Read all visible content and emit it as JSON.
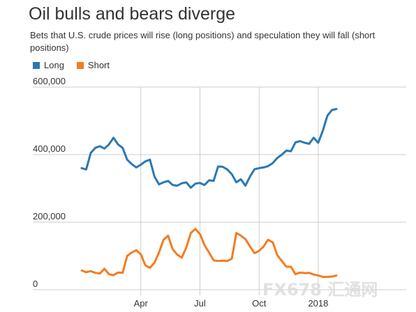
{
  "title": "Oil bulls and bears diverge",
  "subtitle": "Bets that U.S. crude prices will rise (long positions) and speculation they will fall (short positions)",
  "legend": {
    "long": "Long",
    "short": "Short"
  },
  "colors": {
    "long": "#2a78b5",
    "short": "#f47c20",
    "grid": "#cccccc"
  },
  "watermark": "FX678 汇通网",
  "chart_data": {
    "type": "line",
    "title": "Oil bulls and bears diverge",
    "subtitle": "Bets that U.S. crude prices will rise (long positions) and speculation they will fall (short positions)",
    "xlabel": "",
    "ylabel": "",
    "ylim": [
      0,
      600000
    ],
    "yticks": [
      0,
      200000,
      400000,
      600000
    ],
    "ytick_labels": [
      "0",
      "200,000",
      "400,000",
      "600,000"
    ],
    "xtick_labels": [
      "Apr",
      "Jul",
      "Oct",
      "2018"
    ],
    "xtick_positions": [
      13,
      26,
      39,
      52
    ],
    "grid": "vertical and horizontal",
    "legend_position": "top-left",
    "x": [
      0,
      1,
      2,
      3,
      4,
      5,
      6,
      7,
      8,
      9,
      10,
      11,
      12,
      13,
      14,
      15,
      16,
      17,
      18,
      19,
      20,
      21,
      22,
      23,
      24,
      25,
      26,
      27,
      28,
      29,
      30,
      31,
      32,
      33,
      34,
      35,
      36,
      37,
      38,
      39,
      40,
      41,
      42,
      43,
      44,
      45,
      46,
      47,
      48,
      49,
      50,
      51,
      52,
      53,
      54,
      55,
      56
    ],
    "series": [
      {
        "name": "Long",
        "values": [
          360000,
          356000,
          405000,
          420000,
          425000,
          418000,
          430000,
          450000,
          430000,
          420000,
          385000,
          372000,
          362000,
          370000,
          380000,
          385000,
          335000,
          312000,
          318000,
          322000,
          310000,
          308000,
          315000,
          318000,
          302000,
          314000,
          316000,
          310000,
          324000,
          322000,
          365000,
          364000,
          356000,
          342000,
          318000,
          327000,
          308000,
          335000,
          357000,
          360000,
          362000,
          366000,
          375000,
          390000,
          400000,
          412000,
          410000,
          436000,
          440000,
          435000,
          432000,
          450000,
          435000,
          470000,
          515000,
          532000,
          535000
        ]
      },
      {
        "name": "Short",
        "values": [
          57000,
          52000,
          55000,
          50000,
          48000,
          62000,
          46000,
          43000,
          51000,
          50000,
          100000,
          110000,
          117000,
          105000,
          72000,
          65000,
          80000,
          110000,
          148000,
          160000,
          120000,
          104000,
          95000,
          125000,
          168000,
          180000,
          165000,
          132000,
          110000,
          87000,
          85000,
          86000,
          85000,
          92000,
          168000,
          160000,
          150000,
          128000,
          108000,
          115000,
          128000,
          148000,
          140000,
          102000,
          85000,
          68000,
          68000,
          46000,
          51000,
          49000,
          50000,
          45000,
          42000,
          38000,
          38000,
          39000,
          42000
        ]
      }
    ]
  }
}
